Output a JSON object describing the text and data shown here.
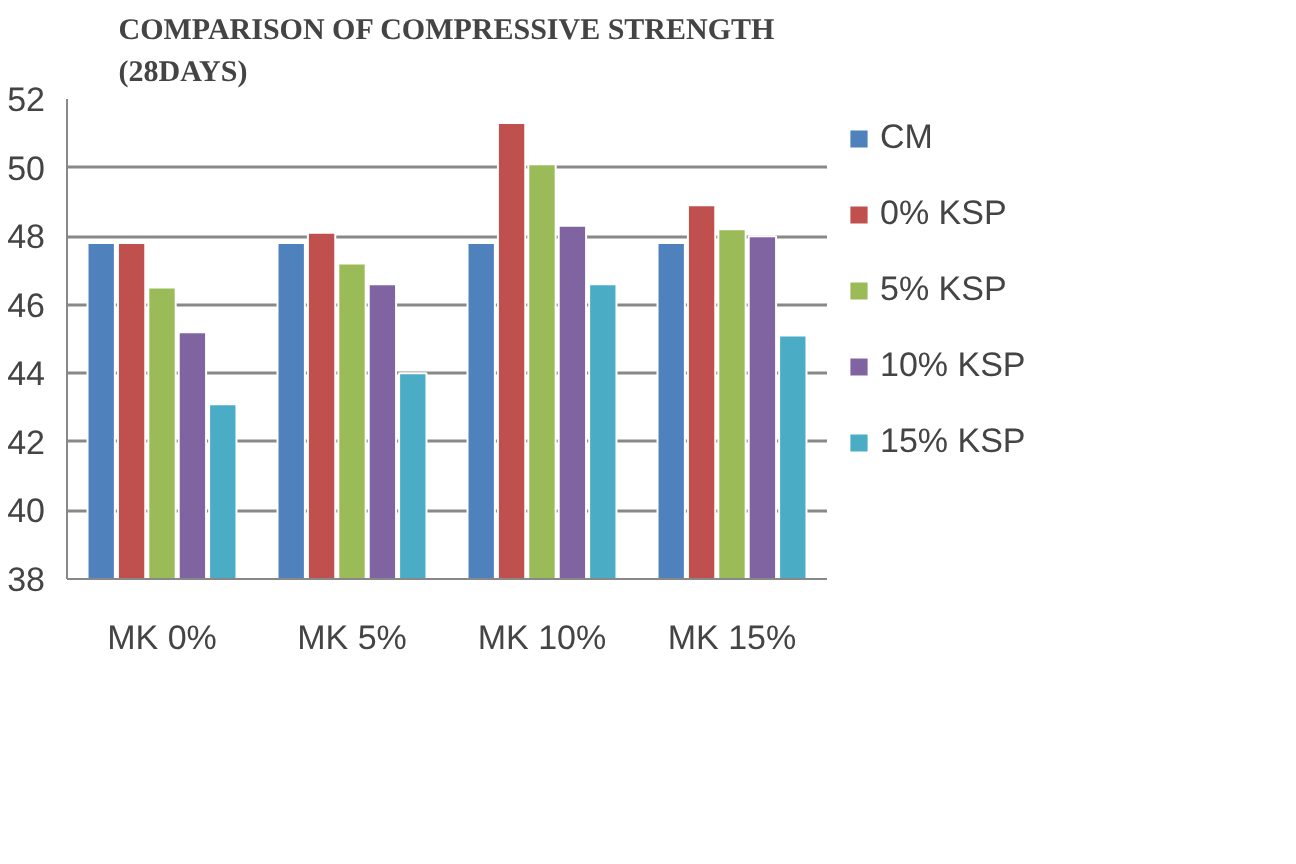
{
  "chart_data": {
    "type": "bar",
    "title": "COMPARISON OF COMPRESSIVE STRENGTH\n(28DAYS)",
    "categories": [
      "MK 0%",
      "MK 5%",
      "MK 10%",
      "MK 15%"
    ],
    "series": [
      {
        "name": "CM",
        "color": "#4f81bd",
        "values": [
          47.8,
          47.8,
          47.8,
          47.8
        ]
      },
      {
        "name": "0% KSP",
        "color": "#c0504d",
        "values": [
          47.8,
          48.1,
          51.3,
          48.9
        ]
      },
      {
        "name": "5% KSP",
        "color": "#9bbb59",
        "values": [
          46.5,
          47.2,
          50.1,
          48.2
        ]
      },
      {
        "name": "10% KSP",
        "color": "#8064a2",
        "values": [
          45.2,
          46.6,
          48.3,
          48.0
        ]
      },
      {
        "name": "15% KSP",
        "color": "#4bacc6",
        "values": [
          43.1,
          44.0,
          46.6,
          45.1
        ]
      }
    ],
    "ylim": [
      38,
      52
    ],
    "yticks": [
      38,
      40,
      42,
      44,
      46,
      48,
      50,
      52
    ],
    "grid": "y",
    "legend": "right"
  }
}
